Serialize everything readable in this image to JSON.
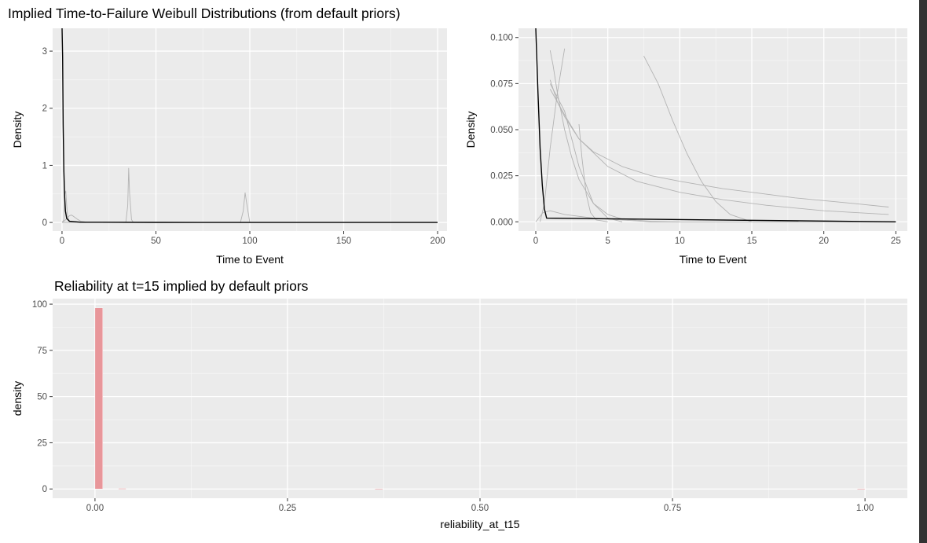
{
  "figure": {
    "title": "Implied Time-to-Failure Weibull Distributions (from default priors)"
  },
  "chart_data": [
    {
      "type": "line",
      "title": "",
      "xlabel": "Time to Event",
      "ylabel": "Density",
      "xlim": [
        -5,
        205
      ],
      "ylim": [
        -0.15,
        3.4
      ],
      "xticks": [
        0,
        50,
        100,
        150,
        200
      ],
      "yticks": [
        0,
        1,
        2,
        3
      ],
      "grid": true,
      "legend": "none",
      "series": [
        {
          "color": "#000000",
          "x": [
            0,
            0.3,
            0.6,
            1,
            1.4,
            1.8,
            2.5,
            4,
            10,
            50,
            200
          ],
          "y": [
            3.4,
            2.9,
            1.7,
            0.9,
            0.45,
            0.2,
            0.07,
            0.02,
            0.004,
            0.001,
            0
          ]
        },
        {
          "color": "#b3b3b3",
          "x": [
            0,
            1,
            1.5,
            2,
            2.5,
            3,
            4,
            6,
            200
          ],
          "y": [
            0,
            0.05,
            0.5,
            0.55,
            0.3,
            0.1,
            0.02,
            0,
            0
          ]
        },
        {
          "color": "#b3b3b3",
          "x": [
            0,
            2,
            4,
            5,
            6,
            8,
            10,
            14,
            200
          ],
          "y": [
            0,
            0.05,
            0.12,
            0.13,
            0.11,
            0.06,
            0.02,
            0,
            0
          ]
        },
        {
          "color": "#b3b3b3",
          "x": [
            0,
            34,
            35,
            35.5,
            36,
            37,
            38,
            200
          ],
          "y": [
            0,
            0,
            0.3,
            0.95,
            0.5,
            0.05,
            0,
            0
          ]
        },
        {
          "color": "#b3b3b3",
          "x": [
            0,
            95,
            96.5,
            97.5,
            98.5,
            100,
            200
          ],
          "y": [
            0,
            0,
            0.2,
            0.52,
            0.3,
            0,
            0
          ]
        }
      ]
    },
    {
      "type": "line",
      "title": "",
      "xlabel": "Time to Event",
      "ylabel": "Density",
      "xlim": [
        -1.2,
        25.8
      ],
      "ylim": [
        -0.005,
        0.105
      ],
      "xticks": [
        0,
        5,
        10,
        15,
        20,
        25
      ],
      "yticks": [
        0,
        0.025,
        0.05,
        0.075,
        0.1
      ],
      "ytick_labels": [
        "0.000",
        "0.025",
        "0.050",
        "0.075",
        "0.100"
      ],
      "grid": true,
      "legend": "none",
      "series": [
        {
          "color": "#000000",
          "x": [
            0,
            0.15,
            0.3,
            0.45,
            0.6,
            0.75,
            25
          ],
          "y": [
            0.105,
            0.07,
            0.04,
            0.02,
            0.007,
            0.002,
            0
          ]
        },
        {
          "color": "#b3b3b3",
          "x": [
            1,
            1.2,
            1.5,
            2,
            2.5,
            3,
            4,
            5,
            6,
            8,
            10
          ],
          "y": [
            0.093,
            0.085,
            0.07,
            0.05,
            0.035,
            0.023,
            0.01,
            0.004,
            0.0015,
            0.0003,
            0
          ]
        },
        {
          "color": "#b3b3b3",
          "x": [
            0.3,
            0.6,
            1,
            1.5,
            2
          ],
          "y": [
            0,
            0.01,
            0.04,
            0.07,
            0.094
          ]
        },
        {
          "color": "#b3b3b3",
          "x": [
            1,
            1.5,
            2,
            3,
            4,
            6,
            8,
            10,
            13,
            15,
            18,
            22,
            24.5
          ],
          "y": [
            0.077,
            0.065,
            0.057,
            0.045,
            0.038,
            0.03,
            0.025,
            0.022,
            0.018,
            0.016,
            0.013,
            0.01,
            0.008
          ]
        },
        {
          "color": "#b3b3b3",
          "x": [
            1,
            2,
            3,
            5,
            7,
            10,
            13,
            16,
            20,
            24.5
          ],
          "y": [
            0.072,
            0.058,
            0.045,
            0.03,
            0.022,
            0.016,
            0.012,
            0.009,
            0.006,
            0.004
          ]
        },
        {
          "color": "#b3b3b3",
          "x": [
            1,
            2,
            2.5,
            3,
            4,
            5,
            6
          ],
          "y": [
            0.075,
            0.06,
            0.045,
            0.03,
            0.01,
            0.002,
            0
          ]
        },
        {
          "color": "#b3b3b3",
          "x": [
            3,
            3.2,
            3.5,
            3.8,
            4.2,
            5
          ],
          "y": [
            0.053,
            0.035,
            0.015,
            0.005,
            0.001,
            0
          ]
        },
        {
          "color": "#b3b3b3",
          "x": [
            7.5,
            8.5,
            9.5,
            10.5,
            11.5,
            12.5,
            13.5,
            15
          ],
          "y": [
            0.09,
            0.075,
            0.055,
            0.037,
            0.022,
            0.011,
            0.004,
            0
          ]
        },
        {
          "color": "#b3b3b3",
          "x": [
            0,
            0.5,
            1,
            2,
            4,
            6,
            8,
            25
          ],
          "y": [
            0,
            0.005,
            0.006,
            0.004,
            0.002,
            0.001,
            0,
            0
          ]
        }
      ]
    },
    {
      "type": "bar",
      "title": "Reliability at t=15 implied by default priors",
      "xlabel": "reliability_at_t15",
      "ylabel": "density",
      "xlim": [
        -0.055,
        1.055
      ],
      "ylim": [
        -5,
        103
      ],
      "xticks": [
        0,
        0.25,
        0.5,
        0.75,
        1
      ],
      "xtick_labels": [
        "0.00",
        "0.25",
        "0.50",
        "0.75",
        "1.00"
      ],
      "yticks": [
        0,
        25,
        50,
        75,
        100
      ],
      "grid": true,
      "legend": "none",
      "bar_color": "#e8969a",
      "bins": [
        {
          "x0": 0,
          "x1": 0.0101,
          "y": 98
        },
        {
          "x0": 0.0303,
          "x1": 0.0404,
          "y": 0.3
        },
        {
          "x0": 0.3636,
          "x1": 0.3737,
          "y": 0.2
        },
        {
          "x0": 0.9899,
          "x1": 1.0,
          "y": 0.2
        }
      ]
    }
  ]
}
